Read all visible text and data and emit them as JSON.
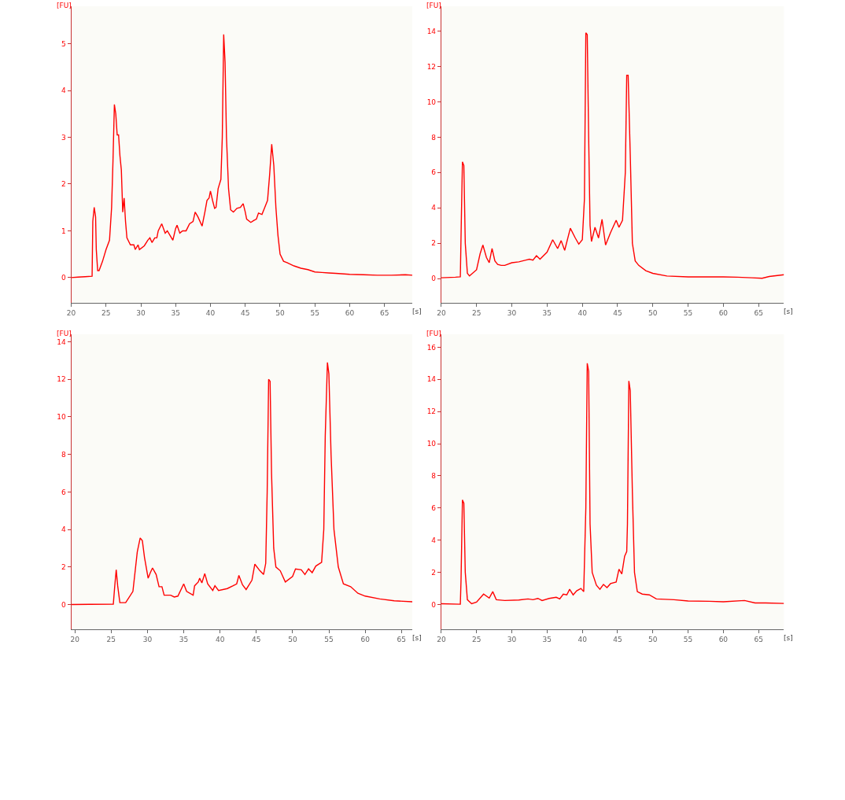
{
  "chart_data": [
    {
      "type": "line",
      "xlabel": "[s]",
      "ylabel": "[FU]",
      "color": "#ff0000",
      "grid": false,
      "xlim": [
        20,
        69
      ],
      "ylim": [
        -0.54,
        5.8
      ],
      "xticks": [
        20,
        25,
        30,
        35,
        40,
        45,
        50,
        55,
        60,
        65
      ],
      "yticks": [
        0,
        1,
        2,
        3,
        4,
        5
      ],
      "x": [
        20,
        21,
        22,
        23,
        23.1,
        23.3,
        23.5,
        23.6,
        23.8,
        24,
        24.5,
        25,
        25.5,
        25.8,
        26,
        26.2,
        26.4,
        26.6,
        26.8,
        27,
        27.2,
        27.4,
        27.6,
        27.8,
        28,
        28.5,
        29,
        29.2,
        29.6,
        29.8,
        30.5,
        31,
        31.3,
        31.6,
        32,
        32.3,
        32.5,
        33,
        33.5,
        33.8,
        34.2,
        34.6,
        35,
        35.2,
        35.6,
        36,
        36.5,
        37,
        37.5,
        37.8,
        38.2,
        38.8,
        39.2,
        39.5,
        39.8,
        40,
        40.3,
        40.6,
        40.8,
        41.1,
        41.5,
        41.7,
        41.9,
        42.1,
        42.3,
        42.6,
        42.9,
        43.3,
        43.8,
        44.3,
        44.7,
        45,
        45.2,
        45.8,
        46.2,
        46.6,
        46.9,
        47.4,
        47.8,
        48.2,
        48.5,
        48.8,
        49.1,
        49.4,
        49.7,
        50,
        50.5,
        51,
        52,
        53,
        54,
        55,
        56,
        57,
        58,
        60,
        62,
        64,
        66,
        68,
        69
      ],
      "values": [
        0,
        0.01,
        0.02,
        0.03,
        1.2,
        1.5,
        1.3,
        0.6,
        0.15,
        0.15,
        0.35,
        0.6,
        0.8,
        1.5,
        2.5,
        3.7,
        3.5,
        3.05,
        3.05,
        2.6,
        2.3,
        1.4,
        1.7,
        1.2,
        0.85,
        0.7,
        0.7,
        0.6,
        0.7,
        0.6,
        0.68,
        0.8,
        0.85,
        0.75,
        0.85,
        0.85,
        1.0,
        1.15,
        0.95,
        1.0,
        0.9,
        0.8,
        1.05,
        1.12,
        0.95,
        1.0,
        1.0,
        1.15,
        1.2,
        1.4,
        1.3,
        1.1,
        1.4,
        1.65,
        1.7,
        1.85,
        1.65,
        1.48,
        1.5,
        1.9,
        2.1,
        3.0,
        5.2,
        4.6,
        3.0,
        1.9,
        1.45,
        1.4,
        1.48,
        1.5,
        1.58,
        1.4,
        1.25,
        1.18,
        1.22,
        1.25,
        1.38,
        1.35,
        1.5,
        1.65,
        2.2,
        2.85,
        2.4,
        1.5,
        0.9,
        0.5,
        0.35,
        0.32,
        0.25,
        0.2,
        0.17,
        0.12,
        0.11,
        0.1,
        0.09,
        0.07,
        0.06,
        0.05,
        0.05,
        0.06,
        0.05
      ]
    },
    {
      "type": "line",
      "xlabel": "[s]",
      "ylabel": "[FU]",
      "color": "#ff0000",
      "grid": false,
      "xlim": [
        20,
        68.6
      ],
      "ylim": [
        -1.37,
        15.4
      ],
      "xticks": [
        20,
        25,
        30,
        35,
        40,
        45,
        50,
        55,
        60,
        65
      ],
      "yticks": [
        0,
        2,
        4,
        6,
        8,
        10,
        12,
        14
      ],
      "x": [
        20,
        22,
        22.7,
        22.85,
        23.0,
        23.2,
        23.4,
        23.7,
        24,
        25,
        25.5,
        25.9,
        26.4,
        26.8,
        27.2,
        27.6,
        28,
        28.5,
        29,
        30,
        31,
        32,
        32.5,
        33,
        33.5,
        34,
        35,
        35.8,
        36.5,
        37,
        37.5,
        38.3,
        39,
        39.5,
        40,
        40.3,
        40.5,
        40.7,
        40.9,
        41.1,
        41.3,
        41.8,
        42.3,
        42.8,
        43.3,
        44,
        44.8,
        45.2,
        45.7,
        46.1,
        46.3,
        46.5,
        46.8,
        47.1,
        47.5,
        48,
        49,
        50,
        52,
        55,
        58,
        60,
        62,
        64,
        65.5,
        66.5,
        68.6
      ],
      "values": [
        0.05,
        0.08,
        0.1,
        3.5,
        6.6,
        6.4,
        2.0,
        0.3,
        0.15,
        0.5,
        1.4,
        1.9,
        1.2,
        0.9,
        1.7,
        1.0,
        0.8,
        0.75,
        0.75,
        0.9,
        0.95,
        1.05,
        1.1,
        1.05,
        1.3,
        1.1,
        1.5,
        2.2,
        1.7,
        2.15,
        1.6,
        2.85,
        2.3,
        1.95,
        2.2,
        4.5,
        13.9,
        13.8,
        8.0,
        3.0,
        2.1,
        2.9,
        2.3,
        3.35,
        1.9,
        2.6,
        3.3,
        2.9,
        3.3,
        6.0,
        11.5,
        11.5,
        7.0,
        2.0,
        1.0,
        0.75,
        0.45,
        0.3,
        0.15,
        0.1,
        0.1,
        0.1,
        0.08,
        0.05,
        0.02,
        0.12,
        0.22
      ]
    },
    {
      "type": "line",
      "xlabel": "[s]",
      "ylabel": "[FU]",
      "color": "#ff0000",
      "grid": false,
      "xlim": [
        19.5,
        66.5
      ],
      "ylim": [
        -1.32,
        14.4
      ],
      "xticks": [
        20,
        25,
        30,
        35,
        40,
        45,
        50,
        55,
        60,
        65
      ],
      "yticks": [
        0,
        2,
        4,
        6,
        8,
        10,
        12,
        14
      ],
      "x": [
        19.5,
        22,
        25.3,
        25.5,
        25.7,
        25.9,
        26.2,
        27,
        28,
        28.6,
        29,
        29.3,
        29.6,
        30.1,
        30.4,
        30.7,
        31.2,
        31.6,
        32,
        32.3,
        33.2,
        33.7,
        34.2,
        35,
        35.4,
        36.3,
        36.5,
        37,
        37.2,
        37.5,
        37.9,
        38.3,
        39,
        39.3,
        39.8,
        41,
        41.8,
        42.3,
        42.6,
        43.1,
        43.6,
        44.4,
        44.8,
        45.5,
        46,
        46.3,
        46.5,
        46.7,
        46.9,
        47.1,
        47.4,
        47.7,
        48.3,
        49,
        50,
        50.4,
        51.2,
        51.7,
        52.2,
        52.7,
        53.2,
        54,
        54.3,
        54.5,
        54.8,
        55.0,
        55.3,
        55.7,
        56.3,
        57,
        58,
        59,
        60,
        62,
        64,
        66.5
      ],
      "values": [
        0,
        0.01,
        0.02,
        1.0,
        1.85,
        1.0,
        0.1,
        0.1,
        0.7,
        2.8,
        3.55,
        3.4,
        2.5,
        1.4,
        1.7,
        1.95,
        1.6,
        0.95,
        0.95,
        0.5,
        0.5,
        0.4,
        0.45,
        1.1,
        0.7,
        0.5,
        1.0,
        1.2,
        1.4,
        1.15,
        1.65,
        1.1,
        0.75,
        1.0,
        0.75,
        0.85,
        1.0,
        1.1,
        1.55,
        1.05,
        0.8,
        1.3,
        2.15,
        1.8,
        1.6,
        2.2,
        6.0,
        12.0,
        11.9,
        7.0,
        3.0,
        2.0,
        1.8,
        1.2,
        1.5,
        1.9,
        1.85,
        1.6,
        1.9,
        1.7,
        2.05,
        2.25,
        4.0,
        9.0,
        12.9,
        12.3,
        8.0,
        4.0,
        2.0,
        1.1,
        0.95,
        0.6,
        0.45,
        0.3,
        0.2,
        0.15
      ]
    },
    {
      "type": "line",
      "xlabel": "[s]",
      "ylabel": "[FU]",
      "color": "#ff0000",
      "grid": false,
      "xlim": [
        20,
        68.6
      ],
      "ylim": [
        -1.54,
        16.8
      ],
      "xticks": [
        20,
        25,
        30,
        35,
        40,
        45,
        50,
        55,
        60,
        65
      ],
      "yticks": [
        0,
        2,
        4,
        6,
        8,
        10,
        12,
        14,
        16
      ],
      "x": [
        20,
        22.7,
        22.8,
        23.0,
        23.2,
        23.4,
        23.7,
        24.3,
        25,
        26,
        26.8,
        27.3,
        27.8,
        29,
        31,
        32.3,
        33,
        33.7,
        34.3,
        35.3,
        36.3,
        36.8,
        37.3,
        37.8,
        38.2,
        38.7,
        39.2,
        39.8,
        40.2,
        40.5,
        40.7,
        40.9,
        41.1,
        41.4,
        42,
        42.5,
        43,
        43.5,
        44,
        44.8,
        45.2,
        45.6,
        46.0,
        46.3,
        46.4,
        46.6,
        46.8,
        47.1,
        47.4,
        47.8,
        48.5,
        49.5,
        50.5,
        53,
        55,
        58,
        60,
        63,
        64.5,
        66,
        68.6
      ],
      "values": [
        0.05,
        0.02,
        1.5,
        6.5,
        6.3,
        2.0,
        0.3,
        0.05,
        0.15,
        0.65,
        0.4,
        0.8,
        0.3,
        0.25,
        0.28,
        0.35,
        0.3,
        0.38,
        0.25,
        0.38,
        0.45,
        0.35,
        0.65,
        0.6,
        0.95,
        0.6,
        0.85,
        1.0,
        0.8,
        6.0,
        15.0,
        14.5,
        5.0,
        2.0,
        1.2,
        0.95,
        1.25,
        1.05,
        1.3,
        1.4,
        2.2,
        1.9,
        3.0,
        3.3,
        5.0,
        13.9,
        13.3,
        7.0,
        2.0,
        0.8,
        0.65,
        0.6,
        0.35,
        0.3,
        0.22,
        0.2,
        0.17,
        0.25,
        0.1,
        0.1,
        0.07
      ]
    }
  ]
}
